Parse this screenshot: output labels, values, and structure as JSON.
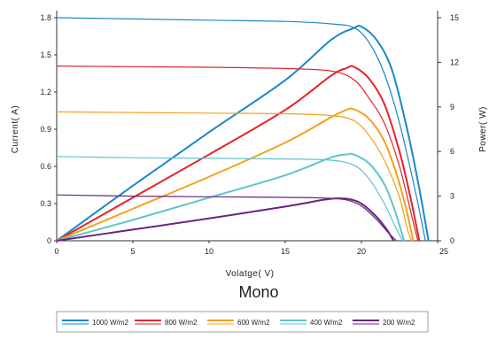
{
  "chart_data": {
    "type": "line",
    "title": "Mono",
    "xlabel": "Volatge( V)",
    "ylabel_left": "Current( A)",
    "ylabel_right": "Power( W)",
    "xlim": [
      0,
      25
    ],
    "ylim_left": [
      0,
      1.8
    ],
    "ylim_right": [
      0,
      15
    ],
    "x_ticks": [
      "0",
      "5",
      "10",
      "15",
      "20",
      "25"
    ],
    "y_left_ticks": [
      "0",
      "0.3",
      "0.6",
      "0.9",
      "1.2",
      "1.5",
      "1.8"
    ],
    "y_right_ticks": [
      "0",
      "3",
      "6",
      "9",
      "12",
      "15"
    ],
    "legend_position": "bottom",
    "series": [
      {
        "name": "1000 W/m2",
        "color": "#1a87c8",
        "current": {
          "x": [
            0,
            5,
            10,
            15,
            18,
            19.5,
            20.5,
            21.5,
            22.5,
            23.5,
            24.2
          ],
          "y": [
            1.8,
            1.79,
            1.78,
            1.77,
            1.75,
            1.72,
            1.6,
            1.35,
            0.95,
            0.42,
            0
          ]
        },
        "power": {
          "x": [
            0,
            5,
            10,
            15,
            18,
            19.5,
            20,
            21,
            22,
            23,
            23.8,
            24.4
          ],
          "y": [
            0,
            3.7,
            7.3,
            10.8,
            13.5,
            14.3,
            14.4,
            13.5,
            11.5,
            7.5,
            3.5,
            0
          ]
        }
      },
      {
        "name": "800 W/m2",
        "color": "#e3242b",
        "current": {
          "x": [
            0,
            5,
            10,
            15,
            18,
            19.5,
            20.5,
            21.5,
            22.5,
            23.3,
            23.7
          ],
          "y": [
            1.41,
            1.405,
            1.4,
            1.39,
            1.37,
            1.3,
            1.15,
            0.95,
            0.6,
            0.2,
            0
          ]
        },
        "power": {
          "x": [
            0,
            5,
            10,
            15,
            18,
            19,
            19.5,
            20.5,
            21.5,
            22.5,
            23.2,
            23.8
          ],
          "y": [
            0,
            2.9,
            5.8,
            8.8,
            11.1,
            11.6,
            11.7,
            10.9,
            9.2,
            6.0,
            3.0,
            0
          ]
        }
      },
      {
        "name": "600 W/m2",
        "color": "#f2a21c",
        "current": {
          "x": [
            0,
            5,
            10,
            15,
            18,
            19.5,
            20.5,
            21.5,
            22.5,
            23,
            23.3
          ],
          "y": [
            1.04,
            1.035,
            1.03,
            1.025,
            1.01,
            0.97,
            0.85,
            0.65,
            0.35,
            0.1,
            0
          ]
        },
        "power": {
          "x": [
            0,
            5,
            10,
            15,
            18,
            19,
            19.5,
            20.5,
            21.5,
            22.3,
            22.9,
            23.4
          ],
          "y": [
            0,
            2.15,
            4.3,
            6.6,
            8.3,
            8.8,
            8.85,
            8.2,
            6.7,
            4.5,
            2.3,
            0
          ]
        }
      },
      {
        "name": "400 W/m2",
        "color": "#5fc4cf",
        "current": {
          "x": [
            0,
            5,
            10,
            15,
            18,
            19.5,
            20.5,
            21.5,
            22.2,
            22.7
          ],
          "y": [
            0.68,
            0.67,
            0.665,
            0.66,
            0.65,
            0.61,
            0.5,
            0.3,
            0.12,
            0
          ]
        },
        "power": {
          "x": [
            0,
            5,
            10,
            15,
            18,
            19,
            19.5,
            20.5,
            21.5,
            22.2,
            22.8
          ],
          "y": [
            0,
            1.4,
            2.9,
            4.4,
            5.6,
            5.8,
            5.8,
            5.2,
            3.8,
            2.0,
            0
          ]
        }
      },
      {
        "name": "200 W/m2",
        "color": "#6a2480",
        "current": {
          "x": [
            0,
            5,
            10,
            15,
            17.5,
            19,
            20,
            21,
            21.8,
            22.3
          ],
          "y": [
            0.37,
            0.36,
            0.355,
            0.35,
            0.345,
            0.33,
            0.28,
            0.17,
            0.06,
            0
          ]
        },
        "power": {
          "x": [
            0,
            5,
            10,
            15,
            17.5,
            18.5,
            19.2,
            20,
            21,
            21.7,
            22.1
          ],
          "y": [
            0,
            0.75,
            1.5,
            2.3,
            2.75,
            2.85,
            2.8,
            2.5,
            1.6,
            0.7,
            0
          ]
        }
      }
    ]
  }
}
